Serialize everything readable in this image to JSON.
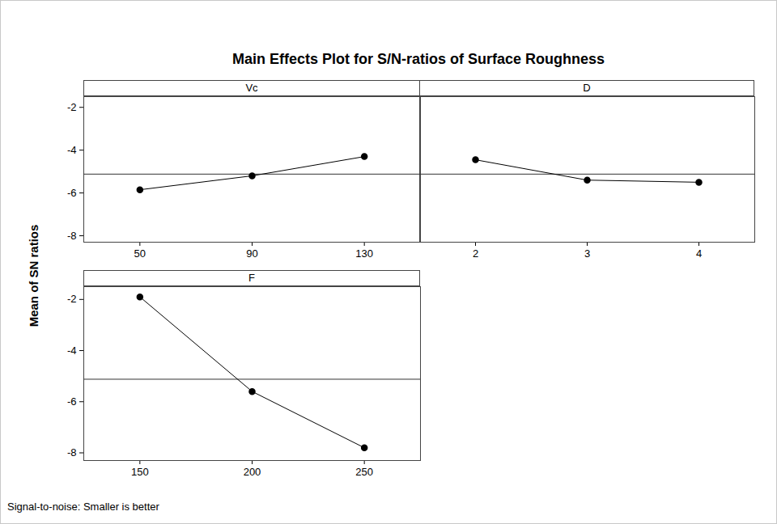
{
  "chart_data": {
    "type": "line",
    "title": "Main Effects Plot for S/N-ratios of Surface Roughness",
    "y_label": "Mean of SN ratios",
    "caption": "Signal-to-noise: Smaller is better",
    "ylim": [
      -8.3,
      -1.5
    ],
    "yticks": [
      -8,
      -6,
      -4,
      -2
    ],
    "reference_line": -5.12,
    "color": "#000000",
    "marker": "circle",
    "line_style": "solid",
    "panels": [
      {
        "title": "Vc",
        "x": [
          50,
          90,
          130
        ],
        "values": [
          -5.85,
          -5.2,
          -4.3
        ],
        "xlim": [
          30,
          150
        ],
        "xticks": [
          50,
          90,
          130
        ]
      },
      {
        "title": "D",
        "x": [
          2,
          3,
          4
        ],
        "values": [
          -4.45,
          -5.4,
          -5.5
        ],
        "xlim": [
          1.5,
          4.5
        ],
        "xticks": [
          2,
          3,
          4
        ],
        "tick_labels": "x"
      },
      {
        "title": "F",
        "x": [
          150,
          200,
          250
        ],
        "values": [
          -1.9,
          -5.6,
          -7.8
        ],
        "xlim": [
          125,
          275
        ],
        "xticks": [
          150,
          200,
          250
        ]
      }
    ]
  }
}
